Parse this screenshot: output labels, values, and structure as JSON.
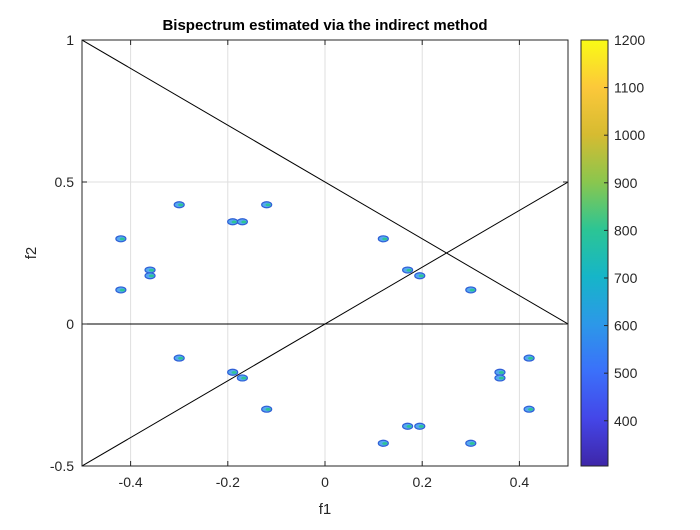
{
  "chart_data": {
    "type": "contour",
    "title": "Bispectrum estimated via the indirect method",
    "xlabel": "f1",
    "ylabel": "f2",
    "xlim": [
      -0.5,
      0.5
    ],
    "ylim": [
      -0.5,
      1
    ],
    "xticks": [
      -0.4,
      -0.2,
      0,
      0.2,
      0.4
    ],
    "xtick_labels": [
      "-0.4",
      "-0.2",
      "0",
      "0.2",
      "0.4"
    ],
    "yticks": [
      -0.5,
      0,
      0.5,
      1
    ],
    "ytick_labels": [
      "-0.5",
      "0",
      "0.5",
      "1"
    ],
    "grid": true,
    "colorbar": {
      "ticks": [
        400,
        500,
        600,
        700,
        800,
        900,
        1000,
        1100,
        1200
      ],
      "tick_labels": [
        "400",
        "500",
        "600",
        "700",
        "800",
        "900",
        "1000",
        "1100",
        "1200"
      ],
      "range": [
        305,
        1200
      ],
      "colormap": [
        "#3e26a8",
        "#4446e8",
        "#3b70fa",
        "#2c98e8",
        "#16b5c8",
        "#2cc594",
        "#8ac64e",
        "#d6bb31",
        "#fcc83a",
        "#f9fb15"
      ]
    },
    "lines": [
      {
        "x": [
          -0.5,
          0.5
        ],
        "y": [
          1,
          0
        ]
      },
      {
        "x": [
          -0.5,
          0.5
        ],
        "y": [
          -0.5,
          0.5
        ]
      },
      {
        "x": [
          -0.5,
          0.5
        ],
        "y": [
          0,
          0
        ]
      }
    ],
    "blobs": [
      {
        "x": -0.42,
        "y": 0.3
      },
      {
        "x": -0.3,
        "y": 0.42
      },
      {
        "x": -0.36,
        "y": 0.19
      },
      {
        "x": -0.36,
        "y": 0.17
      },
      {
        "x": -0.42,
        "y": 0.12
      },
      {
        "x": -0.19,
        "y": 0.36
      },
      {
        "x": -0.17,
        "y": 0.36
      },
      {
        "x": -0.12,
        "y": 0.42
      },
      {
        "x": 0.12,
        "y": 0.3
      },
      {
        "x": 0.17,
        "y": 0.19
      },
      {
        "x": 0.195,
        "y": 0.17
      },
      {
        "x": 0.3,
        "y": 0.12
      },
      {
        "x": -0.3,
        "y": -0.12
      },
      {
        "x": -0.19,
        "y": -0.17
      },
      {
        "x": -0.17,
        "y": -0.19
      },
      {
        "x": -0.12,
        "y": -0.3
      },
      {
        "x": 0.12,
        "y": -0.42
      },
      {
        "x": 0.17,
        "y": -0.36
      },
      {
        "x": 0.195,
        "y": -0.36
      },
      {
        "x": 0.3,
        "y": -0.42
      },
      {
        "x": 0.42,
        "y": -0.12
      },
      {
        "x": 0.36,
        "y": -0.17
      },
      {
        "x": 0.36,
        "y": -0.19
      },
      {
        "x": 0.42,
        "y": -0.3
      }
    ]
  }
}
